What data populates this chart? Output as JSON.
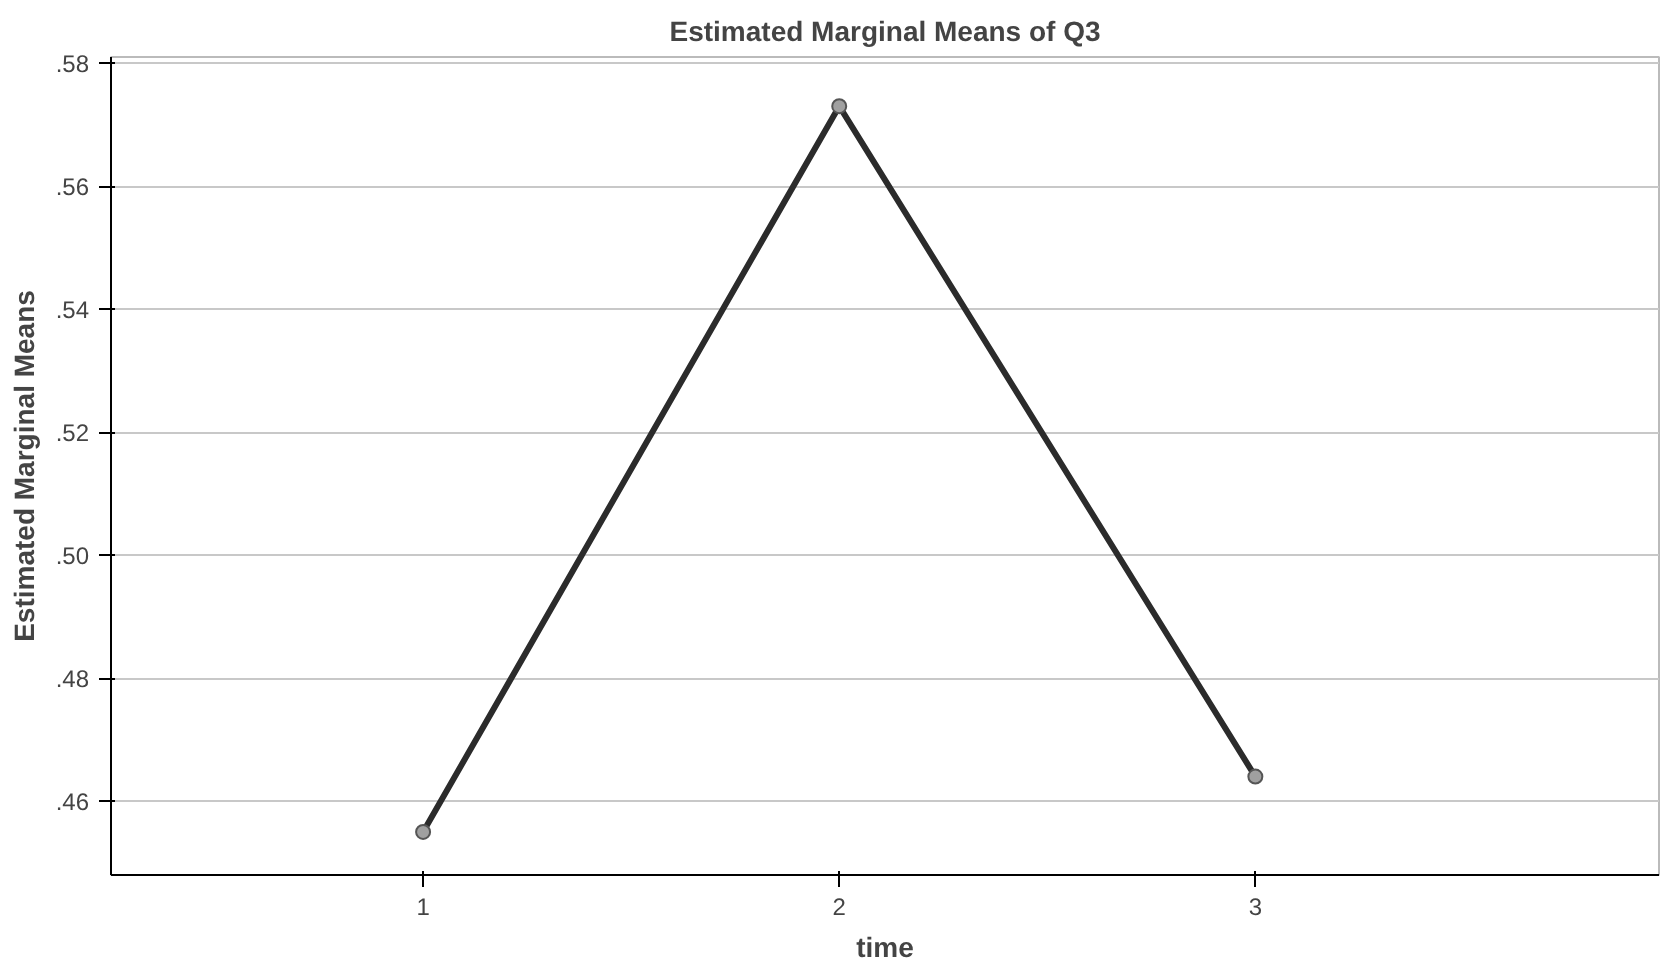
{
  "chart_data": {
    "type": "line",
    "title": "Estimated Marginal Means of Q3",
    "xlabel": "time",
    "ylabel": "Estimated Marginal Means",
    "categories": [
      "1",
      "2",
      "3"
    ],
    "series": [
      {
        "color": "#2b2b2b",
        "values": [
          0.455,
          0.573,
          0.464
        ]
      }
    ],
    "ylim": [
      0.448,
      0.581
    ],
    "yticks": [
      {
        "value": 0.46,
        "label": ".46"
      },
      {
        "value": 0.48,
        "label": ".48"
      },
      {
        "value": 0.5,
        "label": ".50"
      },
      {
        "value": 0.52,
        "label": ".52"
      },
      {
        "value": 0.54,
        "label": ".54"
      },
      {
        "value": 0.56,
        "label": ".56"
      },
      {
        "value": 0.58,
        "label": ".58"
      }
    ],
    "grid": "y",
    "marker": "circle",
    "line_style": "solid"
  }
}
